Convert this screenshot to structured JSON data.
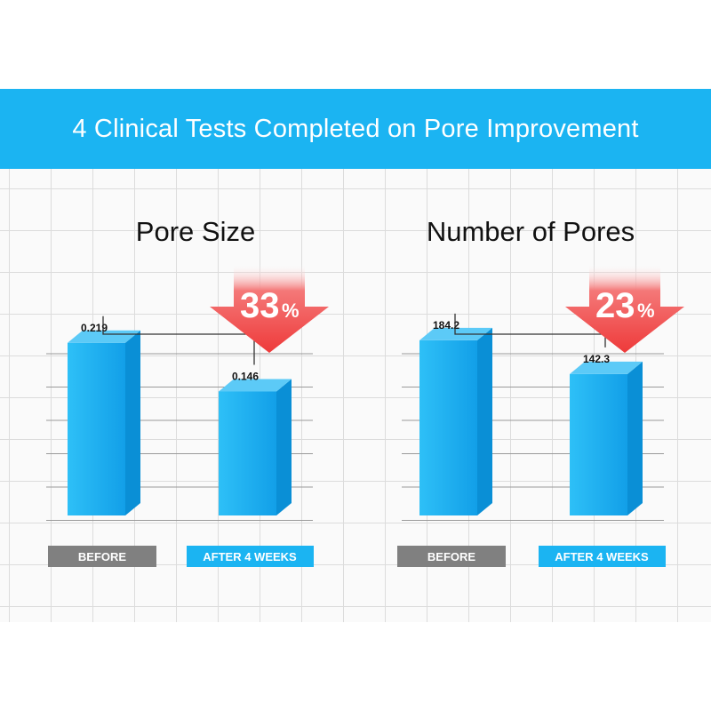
{
  "banner": {
    "title": "4 Clinical Tests Completed on Pore Improvement"
  },
  "colors": {
    "banner": "#1bb4f2",
    "bar_front": "#1aaef0",
    "bar_side": "#0a8fd6",
    "bar_top": "#5ccaf7",
    "before_label": "#808080",
    "after_label": "#1bb4f2",
    "arrow_red": "#ee3a3a"
  },
  "chart_data": [
    {
      "type": "bar",
      "title": "Pore Size",
      "categories": [
        "BEFORE",
        "AFTER 4 WEEKS"
      ],
      "values": [
        0.219,
        0.146
      ],
      "value_labels": [
        "0.219",
        "0.146"
      ],
      "reduction": {
        "number": "33",
        "unit": "%"
      },
      "ylim": [
        0,
        0.26
      ]
    },
    {
      "type": "bar",
      "title": "Number of Pores",
      "categories": [
        "BEFORE",
        "AFTER 4 WEEKS"
      ],
      "values": [
        184.2,
        142.3
      ],
      "value_labels": [
        "184.2",
        "142.3"
      ],
      "reduction": {
        "number": "23",
        "unit": "%"
      },
      "ylim": [
        0,
        215
      ]
    }
  ]
}
